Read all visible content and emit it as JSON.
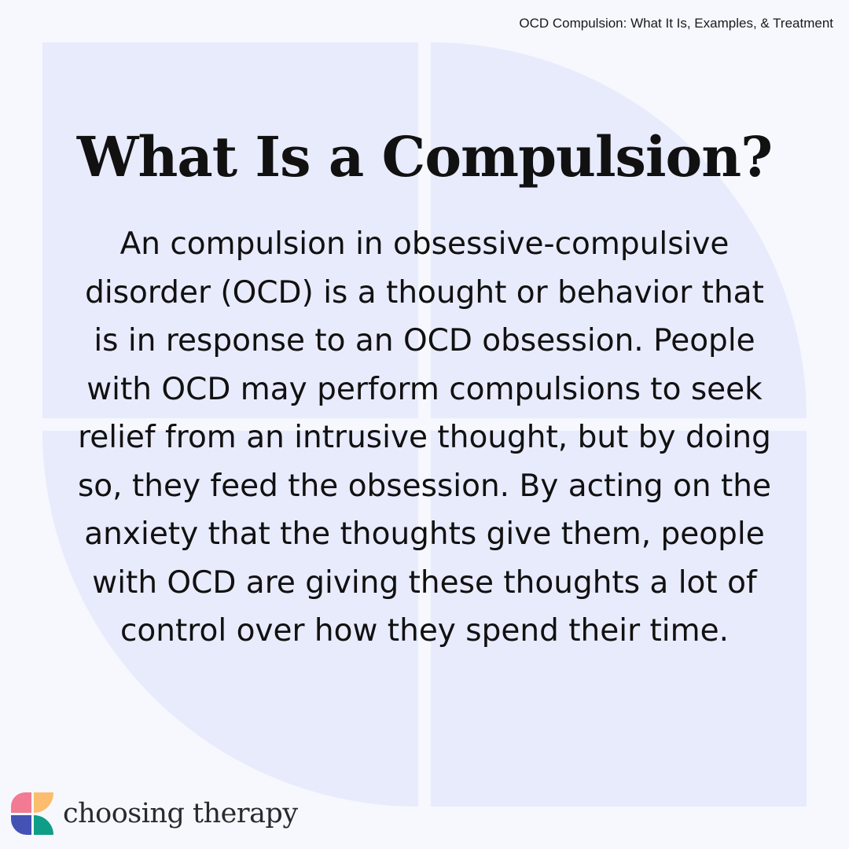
{
  "header": {
    "article_title": "OCD Compulsion: What It Is, Examples, & Treatment"
  },
  "main": {
    "title": "What Is a Compulsion?",
    "body_lines": [
      "An compulsion in obsessive-compulsive",
      "disorder (OCD) is a thought or behavior that",
      "is in response to an OCD obsession. People",
      "with OCD may perform compulsions to seek",
      "relief from an intrusive thought, but by doing",
      "so, they feed the obsession. By acting on the",
      "anxiety that the thoughts give them, people",
      "with OCD are giving these thoughts a lot of",
      "control over how they spend their time."
    ]
  },
  "brand": {
    "name": "choosing therapy",
    "colors": {
      "pink": "#f27a93",
      "yellow": "#fdbd6e",
      "blue": "#4452b3",
      "teal": "#0e9e87",
      "background": "#f6f8fe",
      "shape": "#e8ebfc"
    }
  }
}
